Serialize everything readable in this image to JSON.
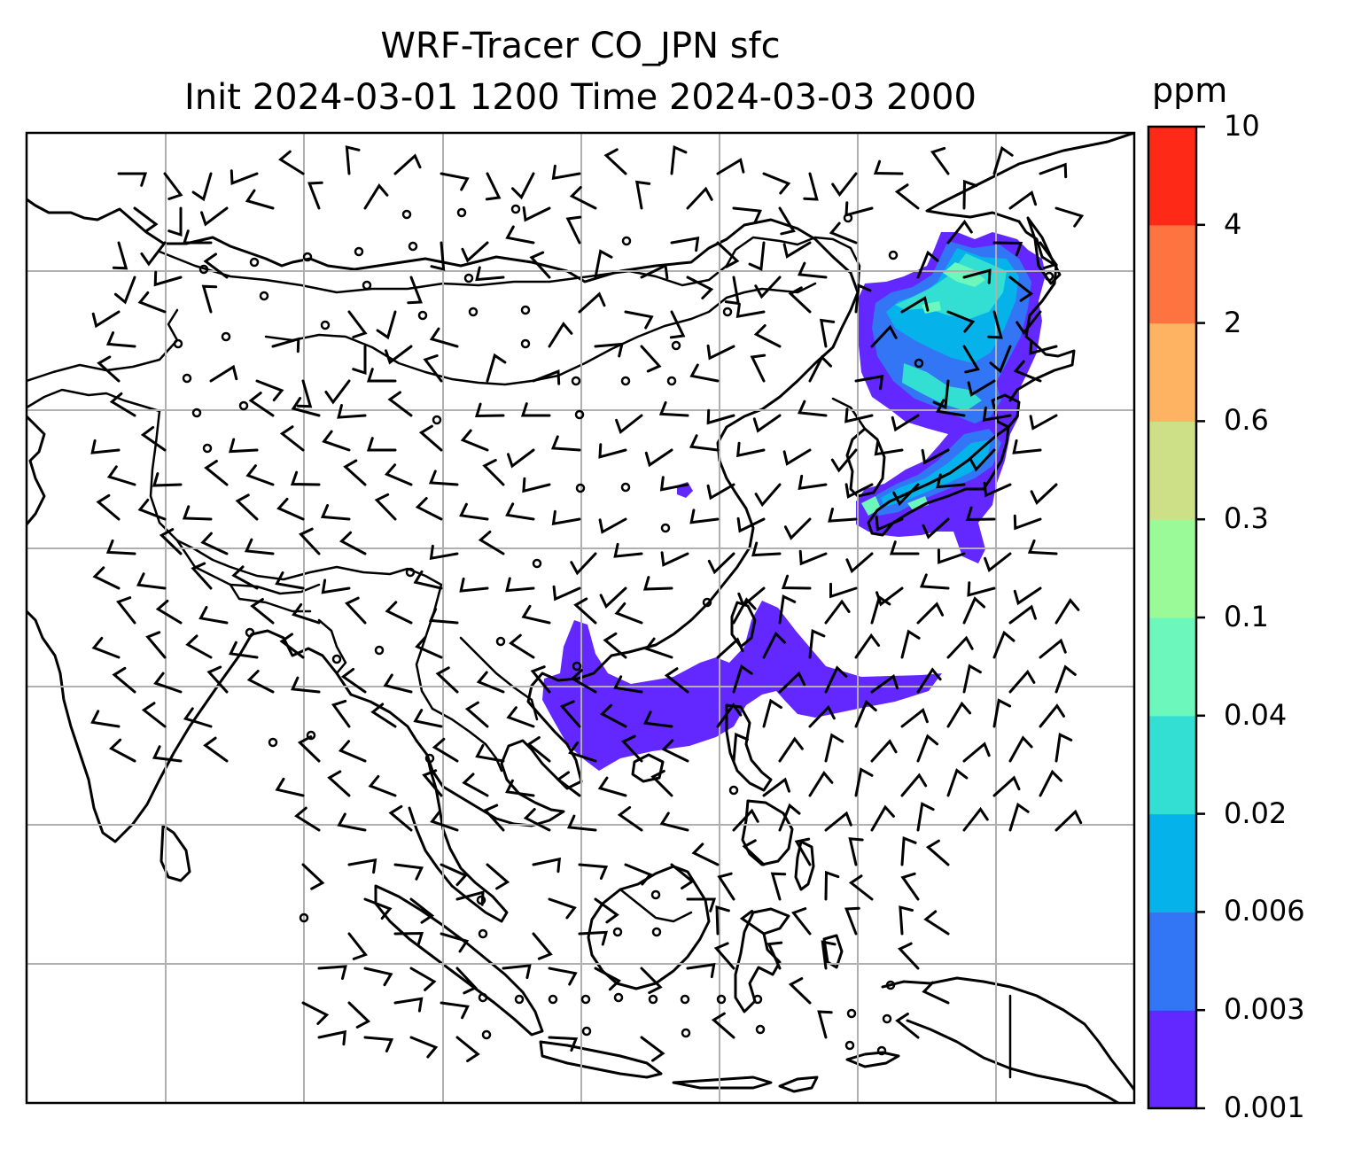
{
  "title": {
    "line1": "WRF-Tracer CO_JPN sfc",
    "line2": "Init 2024-03-01 1200 Time 2024-03-03 2000"
  },
  "colorbar": {
    "unit": "ppm",
    "levels": [
      "0.001",
      "0.003",
      "0.006",
      "0.02",
      "0.04",
      "0.1",
      "0.3",
      "0.6",
      "2",
      "4",
      "10"
    ],
    "colors": [
      "#6228ff",
      "#3275f5",
      "#05b2ea",
      "#33dfd2",
      "#6cf8bc",
      "#9bfa98",
      "#cee087",
      "#feb363",
      "#fe7440",
      "#fe2a17"
    ]
  },
  "map": {
    "land_color": "#ffffff",
    "coastline_color": "#000000",
    "gridline_color": "#b0b0b0",
    "grid": true,
    "wind_barbs": true
  },
  "tracer_regions": [
    {
      "name": "Japan, Korea and northeast China plume",
      "level": "0.001-0.04 ppm"
    },
    {
      "name": "South China Sea and western Pacific plume",
      "level": "0.001-0.003 ppm"
    }
  ]
}
